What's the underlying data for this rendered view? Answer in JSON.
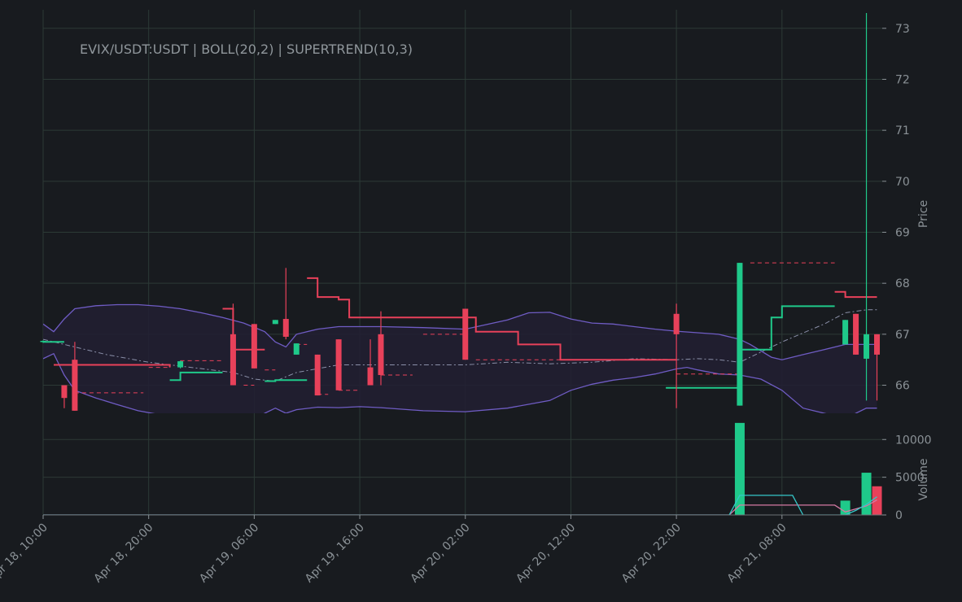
{
  "colors": {
    "background": "#181b1f",
    "grid": "#2c3a36",
    "text": "#8a9196",
    "bullish": "#1fc98a",
    "bearish": "#e8415a",
    "bollinger": "#6f5cc4",
    "bollinger_fill": "#221f33",
    "bollinger_mid": "#8a8fa8",
    "volume_ma_up": "#35c7c8",
    "volume_ma_down": "#d47aa3"
  },
  "chart_data": {
    "type": "candlestick",
    "title": "EVIX/USDT:USDT | BOLL(20,2) | SUPERTREND(10,3)",
    "grid": true,
    "price_axis": {
      "label": "Price",
      "position": "right",
      "ylim": [
        65.45,
        73.3
      ],
      "ticks": [
        66,
        67,
        68,
        69,
        70,
        71,
        72,
        73
      ]
    },
    "volume_axis": {
      "label": "Volume",
      "position": "right",
      "ylim": [
        0,
        12400
      ],
      "ticks": [
        0,
        5000,
        10000
      ]
    },
    "time_axis": {
      "xlim_hours": [
        0,
        79.5
      ],
      "tick_hours": [
        0,
        10,
        20,
        30,
        40,
        50,
        60,
        70
      ],
      "tick_labels": [
        "Apr 18, 10:00",
        "Apr 18, 20:00",
        "Apr 19, 06:00",
        "Apr 19, 16:00",
        "Apr 20, 02:00",
        "Apr 20, 12:00",
        "Apr 20, 22:00",
        "Apr 21, 08:00"
      ]
    },
    "candles": [
      {
        "t": 0,
        "o": 66.85,
        "h": 66.88,
        "l": 66.83,
        "c": 66.87
      },
      {
        "t": 2,
        "o": 66.0,
        "h": 66.0,
        "l": 65.55,
        "c": 65.75
      },
      {
        "t": 3,
        "o": 66.5,
        "h": 66.85,
        "l": 65.5,
        "c": 65.5
      },
      {
        "t": 13,
        "o": 66.35,
        "h": 66.48,
        "l": 66.33,
        "c": 66.47
      },
      {
        "t": 18,
        "o": 67.0,
        "h": 67.6,
        "l": 66.0,
        "c": 66.0
      },
      {
        "t": 20,
        "o": 67.2,
        "h": 67.2,
        "l": 66.33,
        "c": 66.33
      },
      {
        "t": 22,
        "o": 67.2,
        "h": 67.28,
        "l": 67.2,
        "c": 67.28
      },
      {
        "t": 23,
        "o": 67.3,
        "h": 68.3,
        "l": 66.9,
        "c": 66.95
      },
      {
        "t": 24,
        "o": 66.6,
        "h": 66.82,
        "l": 66.6,
        "c": 66.82
      },
      {
        "t": 26,
        "o": 66.6,
        "h": 66.6,
        "l": 65.8,
        "c": 65.8
      },
      {
        "t": 28,
        "o": 66.9,
        "h": 66.9,
        "l": 65.9,
        "c": 65.9
      },
      {
        "t": 31,
        "o": 66.35,
        "h": 66.9,
        "l": 66.0,
        "c": 66.0
      },
      {
        "t": 32,
        "o": 67.0,
        "h": 67.45,
        "l": 66.0,
        "c": 66.2
      },
      {
        "t": 40,
        "o": 67.5,
        "h": 67.5,
        "l": 66.5,
        "c": 66.5
      },
      {
        "t": 60,
        "o": 67.4,
        "h": 67.6,
        "l": 65.55,
        "c": 67.0
      },
      {
        "t": 66,
        "o": 65.6,
        "h": 68.4,
        "l": 65.6,
        "c": 68.4
      },
      {
        "t": 76,
        "o": 66.8,
        "h": 67.28,
        "l": 66.8,
        "c": 67.28
      },
      {
        "t": 77,
        "o": 67.4,
        "h": 67.4,
        "l": 66.6,
        "c": 66.6
      },
      {
        "t": 78,
        "o": 66.52,
        "h": 73.3,
        "l": 65.7,
        "c": 67.0
      },
      {
        "t": 79,
        "o": 67.0,
        "h": 67.0,
        "l": 65.7,
        "c": 66.6
      }
    ],
    "bollinger": {
      "upper": [
        [
          0,
          67.2
        ],
        [
          1,
          67.05
        ],
        [
          2,
          67.3
        ],
        [
          3,
          67.5
        ],
        [
          5,
          67.56
        ],
        [
          7,
          67.58
        ],
        [
          9,
          67.58
        ],
        [
          11,
          67.55
        ],
        [
          13,
          67.5
        ],
        [
          15,
          67.42
        ],
        [
          17,
          67.33
        ],
        [
          19,
          67.22
        ],
        [
          21,
          67.05
        ],
        [
          22,
          66.85
        ],
        [
          23,
          66.75
        ],
        [
          24,
          67.0
        ],
        [
          26,
          67.1
        ],
        [
          28,
          67.15
        ],
        [
          32,
          67.15
        ],
        [
          36,
          67.13
        ],
        [
          40,
          67.1
        ],
        [
          44,
          67.28
        ],
        [
          46,
          67.42
        ],
        [
          48,
          67.43
        ],
        [
          50,
          67.3
        ],
        [
          52,
          67.22
        ],
        [
          54,
          67.2
        ],
        [
          56,
          67.15
        ],
        [
          58,
          67.1
        ],
        [
          60,
          67.06
        ],
        [
          62,
          67.03
        ],
        [
          64,
          67.0
        ],
        [
          66,
          66.9
        ],
        [
          67,
          66.8
        ],
        [
          69,
          66.55
        ],
        [
          70,
          66.5
        ],
        [
          72,
          66.6
        ],
        [
          74,
          66.7
        ],
        [
          76,
          66.8
        ],
        [
          78,
          66.8
        ],
        [
          79,
          66.8
        ]
      ],
      "lower": [
        [
          0,
          66.52
        ],
        [
          1,
          66.62
        ],
        [
          2,
          66.2
        ],
        [
          3,
          65.9
        ],
        [
          5,
          65.75
        ],
        [
          7,
          65.62
        ],
        [
          9,
          65.5
        ],
        [
          13,
          65.35
        ],
        [
          15,
          65.3
        ],
        [
          17,
          65.25
        ],
        [
          19,
          65.22
        ],
        [
          20,
          65.35
        ],
        [
          21,
          65.45
        ],
        [
          22,
          65.55
        ],
        [
          23,
          65.45
        ],
        [
          24,
          65.52
        ],
        [
          26,
          65.57
        ],
        [
          28,
          65.56
        ],
        [
          30,
          65.58
        ],
        [
          32,
          65.56
        ],
        [
          36,
          65.5
        ],
        [
          40,
          65.48
        ],
        [
          44,
          65.55
        ],
        [
          48,
          65.7
        ],
        [
          50,
          65.9
        ],
        [
          52,
          66.02
        ],
        [
          54,
          66.1
        ],
        [
          56,
          66.15
        ],
        [
          58,
          66.22
        ],
        [
          60,
          66.32
        ],
        [
          61,
          66.35
        ],
        [
          62,
          66.3
        ],
        [
          64,
          66.22
        ],
        [
          66,
          66.2
        ],
        [
          68,
          66.12
        ],
        [
          70,
          65.9
        ],
        [
          72,
          65.55
        ],
        [
          74,
          65.45
        ],
        [
          76,
          65.35
        ],
        [
          78,
          65.55
        ],
        [
          79,
          65.55
        ]
      ],
      "middle": [
        [
          0,
          66.9
        ],
        [
          3,
          66.75
        ],
        [
          6,
          66.6
        ],
        [
          10,
          66.45
        ],
        [
          14,
          66.35
        ],
        [
          18,
          66.25
        ],
        [
          20,
          66.12
        ],
        [
          22,
          66.08
        ],
        [
          24,
          66.25
        ],
        [
          28,
          66.4
        ],
        [
          32,
          66.4
        ],
        [
          36,
          66.4
        ],
        [
          40,
          66.4
        ],
        [
          44,
          66.45
        ],
        [
          48,
          66.42
        ],
        [
          52,
          66.45
        ],
        [
          56,
          66.52
        ],
        [
          60,
          66.5
        ],
        [
          62,
          66.52
        ],
        [
          64,
          66.5
        ],
        [
          66,
          66.45
        ],
        [
          70,
          66.85
        ],
        [
          74,
          67.2
        ],
        [
          76,
          67.42
        ],
        [
          78,
          67.48
        ],
        [
          79,
          67.48
        ]
      ]
    },
    "supertrend": {
      "segments": [
        {
          "trend": "up",
          "points": [
            [
              0,
              66.85
            ],
            [
              2,
              66.85
            ]
          ]
        },
        {
          "trend": "down",
          "points": [
            [
              1,
              66.4
            ],
            [
              12,
              66.4
            ],
            [
              12,
              66.35
            ]
          ]
        },
        {
          "trend": "up",
          "points": [
            [
              12,
              66.1
            ],
            [
              13,
              66.1
            ],
            [
              13,
              66.25
            ],
            [
              17,
              66.25
            ]
          ]
        },
        {
          "trend": "down",
          "points": [
            [
              17,
              67.5
            ],
            [
              18,
              67.5
            ],
            [
              18,
              66.7
            ],
            [
              21,
              66.7
            ]
          ]
        },
        {
          "trend": "up",
          "points": [
            [
              21,
              66.08
            ],
            [
              22,
              66.08
            ],
            [
              22,
              66.1
            ],
            [
              25,
              66.1
            ]
          ]
        },
        {
          "trend": "down",
          "points": [
            [
              25,
              68.1
            ],
            [
              26,
              68.1
            ],
            [
              26,
              67.73
            ],
            [
              28,
              67.73
            ],
            [
              28,
              67.68
            ],
            [
              29,
              67.68
            ],
            [
              29,
              67.33
            ],
            [
              41,
              67.33
            ],
            [
              41,
              67.05
            ],
            [
              45,
              67.05
            ],
            [
              45,
              66.8
            ],
            [
              49,
              66.8
            ],
            [
              49,
              66.5
            ],
            [
              60,
              66.5
            ]
          ]
        },
        {
          "trend": "up",
          "points": [
            [
              59,
              65.95
            ],
            [
              66,
              65.95
            ]
          ]
        },
        {
          "trend": "up",
          "points": [
            [
              66,
              66.7
            ],
            [
              69,
              66.7
            ],
            [
              69,
              67.33
            ],
            [
              70,
              67.33
            ],
            [
              70,
              67.55
            ],
            [
              75,
              67.55
            ]
          ]
        },
        {
          "trend": "down",
          "points": [
            [
              75,
              67.83
            ],
            [
              76,
              67.83
            ],
            [
              76,
              67.73
            ],
            [
              79,
              67.73
            ]
          ]
        }
      ],
      "dashed": [
        {
          "trend": "down",
          "points": [
            [
              3,
              65.85
            ],
            [
              9.5,
              65.85
            ]
          ]
        },
        {
          "trend": "down",
          "points": [
            [
              10,
              66.35
            ],
            [
              12,
              66.35
            ]
          ]
        },
        {
          "trend": "down",
          "points": [
            [
              13,
              66.48
            ],
            [
              17,
              66.48
            ]
          ]
        },
        {
          "trend": "down",
          "points": [
            [
              19,
              66.0
            ],
            [
              20,
              66.0
            ]
          ]
        },
        {
          "trend": "down",
          "points": [
            [
              21,
              66.3
            ],
            [
              22,
              66.3
            ]
          ]
        },
        {
          "trend": "down",
          "points": [
            [
              24,
              66.8
            ],
            [
              25,
              66.8
            ]
          ]
        },
        {
          "trend": "down",
          "points": [
            [
              26,
              65.82
            ],
            [
              27,
              65.82
            ]
          ]
        },
        {
          "trend": "down",
          "points": [
            [
              28,
              65.9
            ],
            [
              30,
              65.9
            ]
          ]
        },
        {
          "trend": "down",
          "points": [
            [
              32,
              66.2
            ],
            [
              35,
              66.2
            ]
          ]
        },
        {
          "trend": "down",
          "points": [
            [
              36,
              67.0
            ],
            [
              40,
              67.0
            ]
          ]
        },
        {
          "trend": "down",
          "points": [
            [
              41,
              66.5
            ],
            [
              49,
              66.5
            ]
          ]
        },
        {
          "trend": "down",
          "points": [
            [
              60,
              66.22
            ],
            [
              66,
              66.22
            ]
          ]
        },
        {
          "trend": "down",
          "points": [
            [
              67,
              68.4
            ],
            [
              75,
              68.4
            ]
          ]
        }
      ]
    },
    "volume": [
      {
        "t": 66,
        "v": 12200,
        "dir": "up"
      },
      {
        "t": 76,
        "v": 1900,
        "dir": "up"
      },
      {
        "t": 78,
        "v": 5600,
        "dir": "up"
      },
      {
        "t": 79,
        "v": 3800,
        "dir": "down"
      }
    ],
    "volume_ma": [
      {
        "dir": "down",
        "points": [
          [
            0,
            0
          ],
          [
            65,
            0
          ],
          [
            66,
            1300
          ],
          [
            75,
            1300
          ],
          [
            76,
            400
          ],
          [
            78,
            1200
          ],
          [
            79,
            2000
          ]
        ]
      },
      {
        "dir": "up",
        "points": [
          [
            0,
            0
          ],
          [
            65,
            0
          ],
          [
            66,
            2600
          ],
          [
            71,
            2600
          ],
          [
            72,
            0
          ],
          [
            76,
            0
          ],
          [
            77,
            600
          ],
          [
            78,
            1400
          ],
          [
            79,
            2400
          ]
        ]
      }
    ]
  }
}
